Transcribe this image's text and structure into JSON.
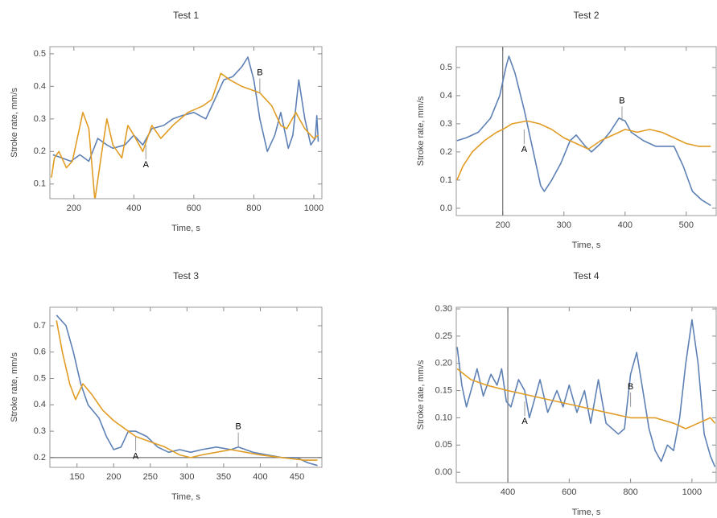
{
  "chart_data": [
    {
      "type": "line",
      "title": "Test 1",
      "xlabel": "Time, s",
      "ylabel": "Stroke rate, mm/s",
      "xlim": [
        120,
        1027
      ],
      "ylim": [
        0.055,
        0.522
      ],
      "xticks": [
        200,
        400,
        600,
        800,
        1000
      ],
      "yticks": [
        0.1,
        0.2,
        0.3,
        0.4,
        0.5
      ],
      "series": [
        {
          "color": "#5e81b5",
          "x": [
            130,
            160,
            190,
            220,
            250,
            280,
            310,
            330,
            370,
            400,
            430,
            460,
            500,
            530,
            560,
            600,
            640,
            670,
            700,
            730,
            760,
            780,
            800,
            820,
            845,
            870,
            890,
            915,
            930,
            950,
            970,
            990,
            1005,
            1010,
            1015
          ],
          "values": [
            0.19,
            0.18,
            0.17,
            0.19,
            0.17,
            0.24,
            0.22,
            0.21,
            0.22,
            0.25,
            0.22,
            0.27,
            0.28,
            0.3,
            0.31,
            0.32,
            0.3,
            0.36,
            0.42,
            0.43,
            0.46,
            0.49,
            0.42,
            0.3,
            0.2,
            0.25,
            0.32,
            0.21,
            0.25,
            0.42,
            0.3,
            0.22,
            0.24,
            0.31,
            0.23
          ]
        },
        {
          "color": "#e19c24",
          "x": [
            125,
            135,
            150,
            175,
            195,
            230,
            250,
            270,
            290,
            310,
            330,
            360,
            380,
            400,
            430,
            460,
            490,
            530,
            580,
            630,
            660,
            690,
            720,
            760,
            820,
            860,
            890,
            910,
            940,
            970,
            1000,
            1015
          ],
          "values": [
            0.12,
            0.18,
            0.2,
            0.15,
            0.17,
            0.32,
            0.27,
            0.05,
            0.18,
            0.3,
            0.22,
            0.18,
            0.28,
            0.25,
            0.2,
            0.28,
            0.24,
            0.28,
            0.32,
            0.34,
            0.36,
            0.44,
            0.42,
            0.4,
            0.38,
            0.34,
            0.28,
            0.27,
            0.32,
            0.27,
            0.24,
            0.25
          ]
        }
      ],
      "annotations": [
        {
          "label": "A",
          "x": 440,
          "y": 0.22,
          "dir": "down"
        },
        {
          "label": "B",
          "x": 820,
          "y": 0.38,
          "dir": "up"
        }
      ]
    },
    {
      "type": "line",
      "title": "Test 2",
      "xlabel": "Time, s",
      "ylabel": "Stroke rate, mm/s",
      "xlim": [
        124,
        549
      ],
      "ylim": [
        -0.026,
        0.574
      ],
      "xticks": [
        200,
        300,
        400,
        500
      ],
      "yticks": [
        {
          "value": 0,
          "label": "0.0"
        },
        0.1,
        0.2,
        0.3,
        0.4,
        0.5
      ],
      "vline": 200,
      "series": [
        {
          "color": "#5e81b5",
          "x": [
            125,
            140,
            160,
            180,
            195,
            205,
            210,
            220,
            235,
            250,
            262,
            268,
            280,
            295,
            310,
            320,
            335,
            345,
            360,
            375,
            390,
            400,
            410,
            430,
            450,
            470,
            480,
            495,
            510,
            525,
            540
          ],
          "values": [
            0.24,
            0.25,
            0.27,
            0.32,
            0.4,
            0.5,
            0.54,
            0.48,
            0.35,
            0.2,
            0.08,
            0.06,
            0.1,
            0.16,
            0.24,
            0.26,
            0.22,
            0.2,
            0.23,
            0.27,
            0.32,
            0.31,
            0.27,
            0.24,
            0.22,
            0.22,
            0.22,
            0.15,
            0.06,
            0.03,
            0.01
          ]
        },
        {
          "color": "#e19c24",
          "x": [
            125,
            135,
            150,
            170,
            190,
            200,
            215,
            240,
            260,
            280,
            300,
            320,
            340,
            360,
            380,
            400,
            420,
            440,
            460,
            480,
            500,
            520,
            540
          ],
          "values": [
            0.1,
            0.15,
            0.2,
            0.24,
            0.27,
            0.28,
            0.3,
            0.31,
            0.3,
            0.28,
            0.25,
            0.23,
            0.21,
            0.24,
            0.26,
            0.28,
            0.27,
            0.28,
            0.27,
            0.25,
            0.23,
            0.22,
            0.22
          ]
        }
      ],
      "annotations": [
        {
          "label": "A",
          "x": 235,
          "y": 0.28,
          "dir": "down"
        },
        {
          "label": "B",
          "x": 395,
          "y": 0.31,
          "dir": "up"
        }
      ]
    },
    {
      "type": "line",
      "title": "Test 3",
      "xlabel": "Time, s",
      "ylabel": "Stroke rate, mm/s",
      "xlim": [
        113,
        484
      ],
      "ylim": [
        0.163,
        0.77
      ],
      "xticks": [
        150,
        200,
        250,
        300,
        350,
        400,
        450
      ],
      "yticks": [
        0.2,
        0.3,
        0.4,
        0.5,
        0.6,
        0.7
      ],
      "hline": 0.2,
      "series": [
        {
          "color": "#5e81b5",
          "x": [
            122,
            135,
            145,
            155,
            165,
            180,
            190,
            200,
            210,
            220,
            230,
            245,
            260,
            275,
            290,
            305,
            320,
            340,
            360,
            370,
            390,
            410,
            430,
            450,
            465,
            478
          ],
          "values": [
            0.74,
            0.7,
            0.6,
            0.48,
            0.4,
            0.35,
            0.28,
            0.23,
            0.24,
            0.3,
            0.3,
            0.28,
            0.24,
            0.22,
            0.23,
            0.22,
            0.23,
            0.24,
            0.23,
            0.24,
            0.22,
            0.21,
            0.2,
            0.2,
            0.18,
            0.17
          ]
        },
        {
          "color": "#e19c24",
          "x": [
            122,
            130,
            140,
            148,
            158,
            170,
            185,
            200,
            215,
            230,
            250,
            270,
            290,
            305,
            320,
            340,
            360,
            380,
            400,
            430,
            460,
            478
          ],
          "values": [
            0.72,
            0.6,
            0.48,
            0.42,
            0.48,
            0.44,
            0.38,
            0.34,
            0.31,
            0.28,
            0.26,
            0.24,
            0.21,
            0.2,
            0.21,
            0.22,
            0.23,
            0.22,
            0.21,
            0.2,
            0.19,
            0.19
          ]
        }
      ],
      "annotations": [
        {
          "label": "A",
          "x": 230,
          "y": 0.28,
          "dir": "down"
        },
        {
          "label": "B",
          "x": 370,
          "y": 0.24,
          "dir": "up"
        }
      ]
    },
    {
      "type": "line",
      "title": "Test 4",
      "xlabel": "Time, s",
      "ylabel": "Stroke rate, mm/s",
      "xlim": [
        232,
        1079
      ],
      "ylim": [
        -0.019,
        0.303
      ],
      "xticks": [
        400,
        600,
        800,
        1000
      ],
      "yticks": [
        {
          "value": 0,
          "label": "0.00"
        },
        0.05,
        {
          "value": 0.1,
          "label": "0.10"
        },
        0.15,
        {
          "value": 0.2,
          "label": "0.20"
        },
        0.25,
        {
          "value": 0.3,
          "label": "0.30"
        }
      ],
      "vline": 400,
      "series": [
        {
          "color": "#5e81b5",
          "x": [
            235,
            250,
            265,
            285,
            300,
            320,
            345,
            365,
            380,
            395,
            410,
            435,
            455,
            470,
            490,
            505,
            530,
            560,
            580,
            600,
            625,
            650,
            670,
            695,
            720,
            760,
            780,
            800,
            820,
            840,
            860,
            880,
            900,
            920,
            940,
            960,
            980,
            1000,
            1020,
            1040,
            1060,
            1075
          ],
          "values": [
            0.23,
            0.16,
            0.12,
            0.16,
            0.19,
            0.14,
            0.18,
            0.16,
            0.19,
            0.13,
            0.12,
            0.17,
            0.15,
            0.1,
            0.14,
            0.17,
            0.11,
            0.15,
            0.12,
            0.16,
            0.11,
            0.15,
            0.09,
            0.17,
            0.09,
            0.07,
            0.08,
            0.18,
            0.22,
            0.15,
            0.08,
            0.04,
            0.02,
            0.05,
            0.04,
            0.1,
            0.2,
            0.28,
            0.2,
            0.07,
            0.03,
            0.01
          ]
        },
        {
          "color": "#e19c24",
          "x": [
            235,
            280,
            330,
            400,
            480,
            560,
            640,
            720,
            800,
            880,
            940,
            980,
            1020,
            1060,
            1075
          ],
          "values": [
            0.19,
            0.17,
            0.16,
            0.15,
            0.14,
            0.13,
            0.12,
            0.11,
            0.1,
            0.1,
            0.09,
            0.08,
            0.09,
            0.1,
            0.09
          ]
        }
      ],
      "annotations": [
        {
          "label": "A",
          "x": 455,
          "y": 0.13,
          "dir": "down"
        },
        {
          "label": "B",
          "x": 800,
          "y": 0.12,
          "dir": "up"
        }
      ]
    }
  ]
}
